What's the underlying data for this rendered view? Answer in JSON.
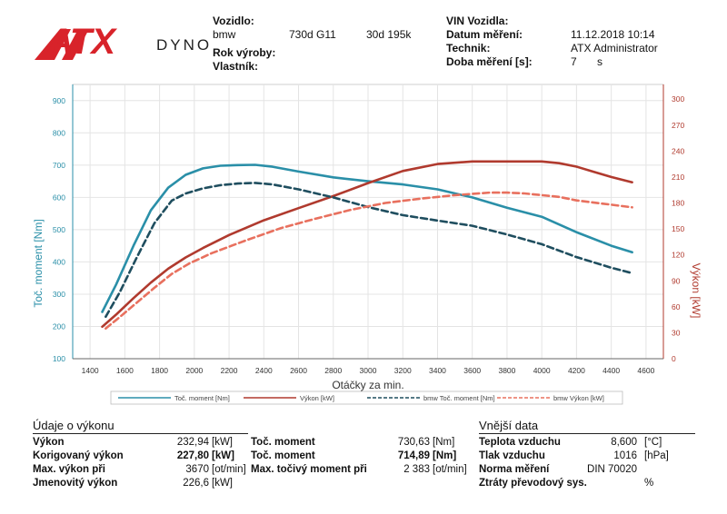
{
  "header": {
    "logo_text": "ATX",
    "logo_sub": "DYNO",
    "vehicle_label": "Vozidlo:",
    "vehicle_make": "bmw",
    "vehicle_model": "730d G11",
    "vehicle_variant": "30d 195k",
    "year_label": "Rok výroby:",
    "owner_label": "Vlastník:",
    "vin_label": "VIN Vozidla:",
    "date_label": "Datum měření:",
    "date_value": "11.12.2018 10:14",
    "tech_label": "Technik:",
    "tech_value": "ATX Administrator",
    "duration_label": "Doba měření [s]:",
    "duration_value": "7",
    "duration_unit": "s"
  },
  "colors": {
    "torque": "#2a8fa8",
    "power": "#b03a2e",
    "ref_torque": "#1f4e5f",
    "ref_power": "#e8705e",
    "logo_red": "#d8232a"
  },
  "chart_data": {
    "type": "line",
    "xlabel": "Otáčky za min.",
    "ylabel_left": "Toč. moment [Nm]",
    "ylabel_right": "Výkon [kW]",
    "xlim": [
      1300,
      4700
    ],
    "ylim_left": [
      100,
      950
    ],
    "ylim_right": [
      0,
      317
    ],
    "x_ticks": [
      1400,
      1600,
      1800,
      2000,
      2200,
      2400,
      2600,
      2800,
      3000,
      3200,
      3400,
      3600,
      3800,
      4000,
      4200,
      4400,
      4600
    ],
    "y_left_ticks": [
      100,
      200,
      300,
      400,
      500,
      600,
      700,
      800,
      900
    ],
    "y_right_ticks": [
      0,
      30,
      60,
      90,
      120,
      150,
      180,
      210,
      240,
      270,
      300
    ],
    "grid": true,
    "legend_position": "bottom",
    "series": [
      {
        "name": "Toč. moment [Nm]",
        "axis": "left",
        "style": "solid",
        "color": "#2a8fa8",
        "x": [
          1470,
          1550,
          1650,
          1750,
          1850,
          1950,
          2050,
          2150,
          2250,
          2350,
          2450,
          2600,
          2800,
          3000,
          3200,
          3400,
          3600,
          3800,
          4000,
          4200,
          4400,
          4520
        ],
        "y": [
          245,
          330,
          450,
          560,
          630,
          670,
          690,
          698,
          700,
          701,
          695,
          680,
          662,
          650,
          640,
          625,
          600,
          568,
          540,
          492,
          450,
          430
        ]
      },
      {
        "name": "Výkon [kW]",
        "axis": "right",
        "style": "solid",
        "color": "#b03a2e",
        "x": [
          1470,
          1550,
          1650,
          1750,
          1850,
          1950,
          2050,
          2200,
          2400,
          2600,
          2800,
          3000,
          3200,
          3400,
          3600,
          3800,
          4000,
          4100,
          4200,
          4300,
          4400,
          4520
        ],
        "y": [
          37,
          51,
          70,
          88,
          104,
          117,
          128,
          143,
          160,
          174,
          188,
          203,
          217,
          225,
          228,
          228,
          228,
          226,
          222,
          216,
          210,
          204
        ]
      },
      {
        "name": "bmw Toč. moment [Nm]",
        "axis": "left",
        "style": "dashed",
        "color": "#1f4e5f",
        "x": [
          1490,
          1570,
          1670,
          1770,
          1870,
          1950,
          2050,
          2150,
          2250,
          2350,
          2450,
          2600,
          2800,
          3000,
          3200,
          3400,
          3600,
          3800,
          4000,
          4200,
          4400,
          4520
        ],
        "y": [
          230,
          305,
          415,
          520,
          590,
          612,
          628,
          638,
          643,
          645,
          640,
          625,
          600,
          570,
          545,
          528,
          512,
          485,
          455,
          415,
          382,
          365
        ]
      },
      {
        "name": "bmw Výkon [kW]",
        "axis": "right",
        "style": "dashed",
        "color": "#e8705e",
        "x": [
          1490,
          1570,
          1670,
          1770,
          1870,
          1970,
          2100,
          2300,
          2500,
          2700,
          2900,
          3100,
          3300,
          3500,
          3700,
          3800,
          3900,
          4000,
          4100,
          4200,
          4400,
          4520
        ],
        "y": [
          35,
          48,
          65,
          82,
          98,
          110,
          122,
          137,
          151,
          162,
          172,
          180,
          185,
          189,
          192,
          192,
          191,
          189,
          187,
          183,
          178,
          175
        ]
      }
    ]
  },
  "results": {
    "perf_title": "Údaje o výkonu",
    "ext_title": "Vnější data",
    "col1": [
      {
        "label": "Výkon",
        "value": "232,94",
        "unit": "[kW]",
        "bold": false
      },
      {
        "label": "Korigovaný výkon",
        "value": "227,80",
        "unit": "[kW]",
        "bold": true
      },
      {
        "label": "Max. výkon při",
        "value": "3670",
        "unit": "[ot/min]",
        "bold": false
      },
      {
        "label": "Jmenovitý výkon",
        "value": "226,6",
        "unit": "[kW]",
        "bold": false
      }
    ],
    "col2": [
      {
        "label": "Toč. moment",
        "value": "730,63",
        "unit": "[Nm]",
        "bold": false
      },
      {
        "label": "Toč. moment",
        "value": "714,89",
        "unit": "[Nm]",
        "bold": true
      },
      {
        "label": "Max. točivý moment při",
        "value": "2 383",
        "unit": "[ot/min]",
        "bold": false
      }
    ],
    "col3": [
      {
        "label": "Teplota vzduchu",
        "value": "8,600",
        "unit": "[°C]"
      },
      {
        "label": "Tlak vzduchu",
        "value": "1016",
        "unit": "[hPa]"
      },
      {
        "label": "Norma měření",
        "value": "DIN 70020",
        "unit": ""
      },
      {
        "label": "Ztráty převodový sys.",
        "value": "",
        "unit": "%"
      }
    ]
  }
}
